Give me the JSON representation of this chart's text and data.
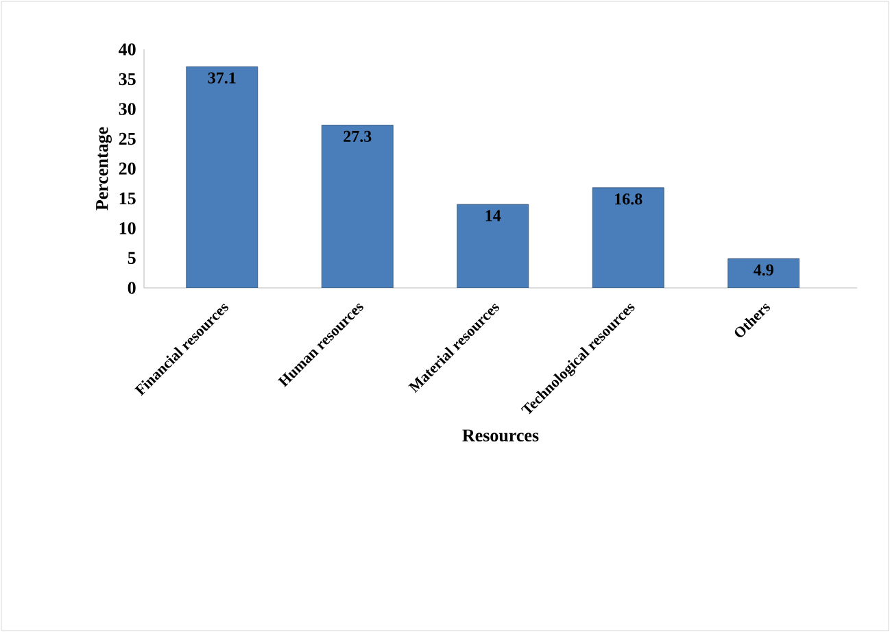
{
  "chart_data": {
    "type": "bar",
    "xlabel": "Resources",
    "ylabel": "Percentage",
    "categories": [
      "Financial resources",
      "Human resources",
      "Material resources",
      "Technological resources",
      "Others"
    ],
    "values": [
      37.1,
      27.3,
      14,
      16.8,
      4.9
    ],
    "color": "#4a7ebb",
    "ylim": [
      0,
      40
    ],
    "yticks": [
      0,
      5,
      10,
      15,
      20,
      25,
      30,
      35,
      40
    ],
    "data_labels": true
  }
}
